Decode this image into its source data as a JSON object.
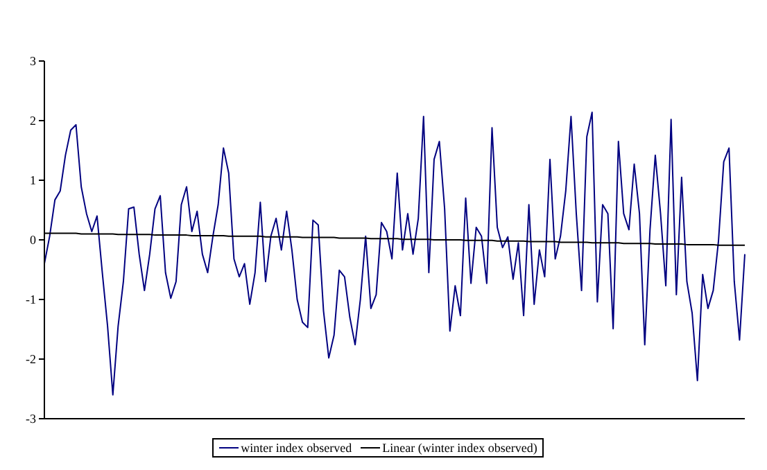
{
  "chart_data": {
    "type": "line",
    "categories": [
      null,
      null,
      null,
      null,
      null,
      null,
      null,
      null,
      null,
      null,
      null,
      null,
      null,
      null,
      null,
      null,
      null,
      null,
      null,
      null,
      null,
      null,
      null,
      null,
      null,
      null,
      null,
      null,
      null,
      null,
      null,
      null,
      null,
      null,
      null,
      null,
      null,
      null,
      null,
      null,
      null,
      null,
      null,
      null,
      null,
      null,
      null,
      null,
      null,
      null,
      null,
      null,
      null,
      null,
      null,
      null,
      null,
      null,
      null,
      null,
      null,
      null,
      null,
      null,
      null,
      null,
      null,
      null,
      null,
      null,
      null,
      null,
      null,
      null,
      null,
      null,
      null,
      null,
      null,
      null,
      null,
      null,
      null,
      null,
      null,
      null,
      null,
      null,
      null,
      null,
      null,
      null,
      null,
      null,
      null,
      null,
      null,
      null,
      null,
      null,
      null,
      null,
      null,
      null,
      null,
      null,
      null,
      null,
      null,
      null,
      null,
      null,
      null,
      null,
      null,
      null,
      null,
      null,
      null,
      null,
      null,
      null,
      null,
      null,
      null,
      null,
      null,
      null,
      null,
      null,
      null,
      null,
      null,
      null
    ],
    "series": [
      {
        "name": "winter index observed",
        "color": "#000080",
        "values": [
          -0.4,
          0.06,
          0.67,
          0.82,
          1.42,
          1.84,
          1.93,
          0.89,
          0.44,
          0.14,
          0.4,
          -0.55,
          -1.45,
          -2.6,
          -1.45,
          -0.7,
          0.52,
          0.55,
          -0.24,
          -0.85,
          -0.24,
          0.52,
          0.74,
          -0.55,
          -0.98,
          -0.7,
          0.59,
          0.89,
          0.14,
          0.48,
          -0.24,
          -0.55,
          0.06,
          0.59,
          1.54,
          1.12,
          -0.32,
          -0.62,
          -0.4,
          -1.08,
          -0.55,
          0.63,
          -0.7,
          0.06,
          0.36,
          -0.17,
          0.48,
          -0.17,
          -1.0,
          -1.38,
          -1.47,
          0.33,
          0.25,
          -1.19,
          -1.98,
          -1.6,
          -0.51,
          -0.62,
          -1.3,
          -1.76,
          -1.0,
          0.06,
          -1.15,
          -0.92,
          0.29,
          0.14,
          -0.32,
          1.12,
          -0.17,
          0.44,
          -0.24,
          0.36,
          2.07,
          -0.55,
          1.35,
          1.65,
          0.52,
          -1.53,
          -0.77,
          -1.27,
          0.7,
          -0.73,
          0.21,
          0.06,
          -0.73,
          1.88,
          0.21,
          -0.13,
          0.05,
          -0.66,
          -0.05,
          -1.27,
          0.59,
          -1.08,
          -0.17,
          -0.62,
          1.35,
          -0.32,
          0.06,
          0.82,
          2.07,
          0.44,
          -0.85,
          1.73,
          2.14,
          -1.04,
          0.59,
          0.44,
          -1.49,
          1.65,
          0.44,
          0.17,
          1.27,
          0.44,
          -1.76,
          0.17,
          1.42,
          0.44,
          -0.77,
          2.02,
          -0.92,
          1.05,
          -0.7,
          -1.23,
          -2.36,
          -0.58,
          -1.15,
          -0.85,
          -0.02,
          1.31,
          1.54,
          -0.7,
          -1.68,
          -0.24
        ]
      },
      {
        "name": "Linear (winter index observed)",
        "color": "#000000",
        "values": [
          0.11,
          0.11,
          0.11,
          0.11,
          0.11,
          0.11,
          0.11,
          0.1,
          0.1,
          0.1,
          0.1,
          0.1,
          0.1,
          0.1,
          0.09,
          0.09,
          0.09,
          0.09,
          0.09,
          0.09,
          0.09,
          0.08,
          0.08,
          0.08,
          0.08,
          0.08,
          0.08,
          0.08,
          0.07,
          0.07,
          0.07,
          0.07,
          0.07,
          0.07,
          0.07,
          0.06,
          0.06,
          0.06,
          0.06,
          0.06,
          0.06,
          0.06,
          0.05,
          0.05,
          0.05,
          0.05,
          0.05,
          0.05,
          0.05,
          0.04,
          0.04,
          0.04,
          0.04,
          0.04,
          0.04,
          0.04,
          0.03,
          0.03,
          0.03,
          0.03,
          0.03,
          0.03,
          0.02,
          0.02,
          0.02,
          0.02,
          0.02,
          0.02,
          0.01,
          0.01,
          0.01,
          0.01,
          0.01,
          0.01,
          0,
          0,
          0,
          0,
          0,
          0,
          -0.01,
          -0.01,
          -0.01,
          -0.01,
          -0.01,
          -0.01,
          -0.02,
          -0.02,
          -0.02,
          -0.02,
          -0.02,
          -0.02,
          -0.03,
          -0.03,
          -0.03,
          -0.03,
          -0.03,
          -0.03,
          -0.04,
          -0.04,
          -0.04,
          -0.04,
          -0.04,
          -0.04,
          -0.05,
          -0.05,
          -0.05,
          -0.05,
          -0.05,
          -0.05,
          -0.06,
          -0.06,
          -0.06,
          -0.06,
          -0.06,
          -0.06,
          -0.07,
          -0.07,
          -0.07,
          -0.07,
          -0.07,
          -0.07,
          -0.08,
          -0.08,
          -0.08,
          -0.08,
          -0.08,
          -0.08,
          -0.09,
          -0.09,
          -0.09,
          -0.09,
          -0.09,
          -0.09
        ]
      }
    ],
    "ylim": [
      -3,
      3
    ],
    "yticks": [
      -3,
      -2,
      -1,
      0,
      1,
      2,
      3
    ],
    "tick_labels": "y",
    "legend": "bottom",
    "grid": false
  }
}
